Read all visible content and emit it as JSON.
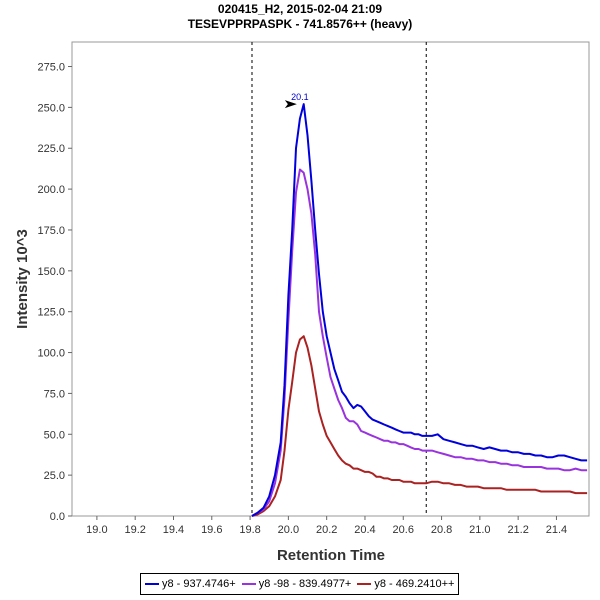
{
  "chart_data": {
    "type": "line",
    "title": "020415_H2, 2015-02-04 21:09",
    "subtitle": "TESEVPPRPASPK - 741.8576++ (heavy)",
    "xlabel": "Retention Time",
    "ylabel": "Intensity 10^3",
    "xlim": [
      18.87,
      21.57
    ],
    "ylim": [
      0,
      290
    ],
    "xticks": [
      "19.0",
      "19.2",
      "19.4",
      "19.6",
      "19.8",
      "20.0",
      "20.2",
      "20.4",
      "20.6",
      "20.8",
      "21.0",
      "21.2",
      "21.4"
    ],
    "yticks": [
      "0.0",
      "25.0",
      "50.0",
      "75.0",
      "100.0",
      "125.0",
      "150.0",
      "175.0",
      "200.0",
      "225.0",
      "250.0",
      "275.0"
    ],
    "integration_bounds": [
      19.81,
      20.72
    ],
    "peak_annotation": {
      "label": "20.1",
      "x": 20.06,
      "y": 252
    },
    "x": [
      19.81,
      19.84,
      19.87,
      19.9,
      19.93,
      19.96,
      19.98,
      20.0,
      20.02,
      20.04,
      20.06,
      20.08,
      20.1,
      20.12,
      20.14,
      20.16,
      20.18,
      20.2,
      20.22,
      20.24,
      20.26,
      20.28,
      20.3,
      20.32,
      20.34,
      20.36,
      20.38,
      20.4,
      20.42,
      20.44,
      20.46,
      20.48,
      20.5,
      20.52,
      20.54,
      20.56,
      20.58,
      20.6,
      20.62,
      20.64,
      20.66,
      20.68,
      20.7,
      20.72,
      20.75,
      20.78,
      20.81,
      20.84,
      20.87,
      20.9,
      20.93,
      20.96,
      20.99,
      21.02,
      21.05,
      21.08,
      21.11,
      21.14,
      21.17,
      21.2,
      21.23,
      21.26,
      21.29,
      21.32,
      21.35,
      21.38,
      21.41,
      21.44,
      21.47,
      21.5,
      21.53,
      21.56
    ],
    "series": [
      {
        "name": "y8 - 937.4746+",
        "color": "#0000dd",
        "values": [
          0,
          2,
          5,
          12,
          25,
          45,
          80,
          135,
          175,
          225,
          243,
          252,
          233,
          205,
          175,
          148,
          125,
          110,
          100,
          90,
          83,
          76,
          73,
          69,
          66,
          68,
          67,
          64,
          61,
          59,
          58,
          57,
          56,
          55,
          54,
          53,
          52,
          51,
          51,
          51,
          50,
          50,
          49,
          49,
          49,
          50,
          47,
          46,
          45,
          44,
          43,
          43,
          42,
          41,
          42,
          41,
          40,
          40,
          39,
          39,
          38,
          38,
          37,
          37,
          36,
          36,
          37,
          37,
          36,
          35,
          34,
          34
        ]
      },
      {
        "name": "y8 -98 - 839.4977+",
        "color": "#9933dd",
        "values": [
          0,
          2,
          4,
          9,
          20,
          40,
          72,
          120,
          162,
          198,
          212,
          210,
          200,
          185,
          160,
          125,
          110,
          97,
          85,
          78,
          71,
          66,
          60,
          58,
          58,
          56,
          52,
          51,
          50,
          49,
          48,
          47,
          46,
          46,
          45,
          45,
          44,
          44,
          43,
          42,
          41,
          41,
          40,
          40,
          40,
          39,
          38,
          37,
          36,
          36,
          35,
          35,
          34,
          34,
          33,
          33,
          32,
          32,
          31,
          31,
          30,
          30,
          30,
          30,
          29,
          29,
          29,
          28,
          28,
          29,
          28,
          28
        ]
      },
      {
        "name": "y8 - 469.2410++",
        "color": "#aa2222",
        "values": [
          0,
          1,
          3,
          6,
          12,
          22,
          40,
          65,
          82,
          100,
          108,
          110,
          103,
          92,
          78,
          64,
          56,
          49,
          45,
          41,
          37,
          34,
          32,
          31,
          29,
          29,
          28,
          27,
          27,
          26,
          24,
          24,
          23,
          23,
          22,
          22,
          22,
          21,
          21,
          21,
          20,
          20,
          20,
          20,
          21,
          21,
          20,
          20,
          19,
          19,
          18,
          18,
          18,
          17,
          17,
          17,
          17,
          16,
          16,
          16,
          16,
          16,
          16,
          15,
          15,
          15,
          15,
          15,
          15,
          14,
          14,
          14
        ]
      }
    ]
  }
}
